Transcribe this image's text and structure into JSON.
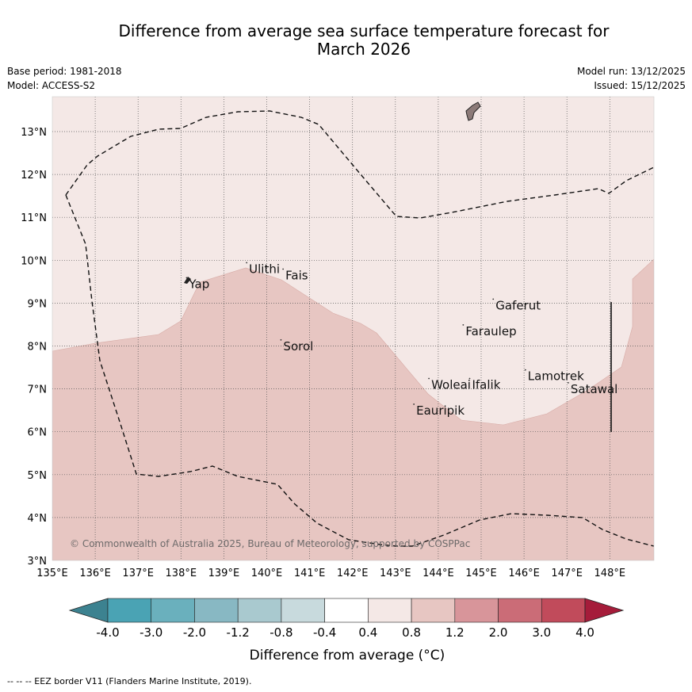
{
  "title_line1": "Difference from average sea surface temperature forecast for",
  "title_line2": "March 2026",
  "meta": {
    "base_period": "Base period: 1981-2018",
    "model": "Model: ACCESS-S2",
    "model_run": "Model run: 13/12/2025",
    "issued": "Issued: 15/12/2025"
  },
  "map": {
    "lon_range": [
      135,
      149
    ],
    "lat_range": [
      3,
      13.8
    ],
    "x_ticks": [
      "135°E",
      "136°E",
      "137°E",
      "138°E",
      "139°E",
      "140°E",
      "141°E",
      "142°E",
      "143°E",
      "144°E",
      "145°E",
      "146°E",
      "147°E",
      "148°E"
    ],
    "y_ticks": [
      "3°N",
      "4°N",
      "5°N",
      "6°N",
      "7°N",
      "8°N",
      "9°N",
      "10°N",
      "11°N",
      "12°N",
      "13°N"
    ],
    "warm_region_category": "0.8 to 1.2",
    "background_category": "0.4 to 0.8",
    "places": [
      {
        "name": "Yap",
        "lon": 138.15,
        "lat": 9.5
      },
      {
        "name": "Ulithi",
        "lon": 139.55,
        "lat": 9.85
      },
      {
        "name": "Fais",
        "lon": 140.4,
        "lat": 9.7
      },
      {
        "name": "Gaferut",
        "lon": 145.3,
        "lat": 9.0
      },
      {
        "name": "Faraulep",
        "lon": 144.6,
        "lat": 8.4
      },
      {
        "name": "Sorol",
        "lon": 140.35,
        "lat": 8.05
      },
      {
        "name": "Woleai",
        "lon": 143.8,
        "lat": 7.15
      },
      {
        "name": "Ifalik",
        "lon": 144.75,
        "lat": 7.15
      },
      {
        "name": "Lamotrek",
        "lon": 146.05,
        "lat": 7.35
      },
      {
        "name": "Satawal",
        "lon": 147.05,
        "lat": 7.05
      },
      {
        "name": "Eauripik",
        "lon": 143.45,
        "lat": 6.55
      }
    ],
    "copyright": "© Commonwealth of Australia 2025, Bureau of Meteorology, supported by COSPPac"
  },
  "colorbar": {
    "labels": [
      "-4.0",
      "-3.0",
      "-2.0",
      "-1.2",
      "-0.8",
      "-0.4",
      "0.4",
      "0.8",
      "1.2",
      "2.0",
      "3.0",
      "4.0"
    ],
    "colors": [
      "#3c8290",
      "#4aa3b4",
      "#6ab0bd",
      "#88b8c3",
      "#a9c9cf",
      "#c8dadd",
      "#ffffff",
      "#f4e8e6",
      "#e7c6c2",
      "#d8959a",
      "#cb6c77",
      "#c14b5b",
      "#a51c3a"
    ],
    "label": "Difference from average (°C)"
  },
  "eez_credit": "--  --  -- EEZ border V11 (Flanders Marine Institute, 2019)."
}
